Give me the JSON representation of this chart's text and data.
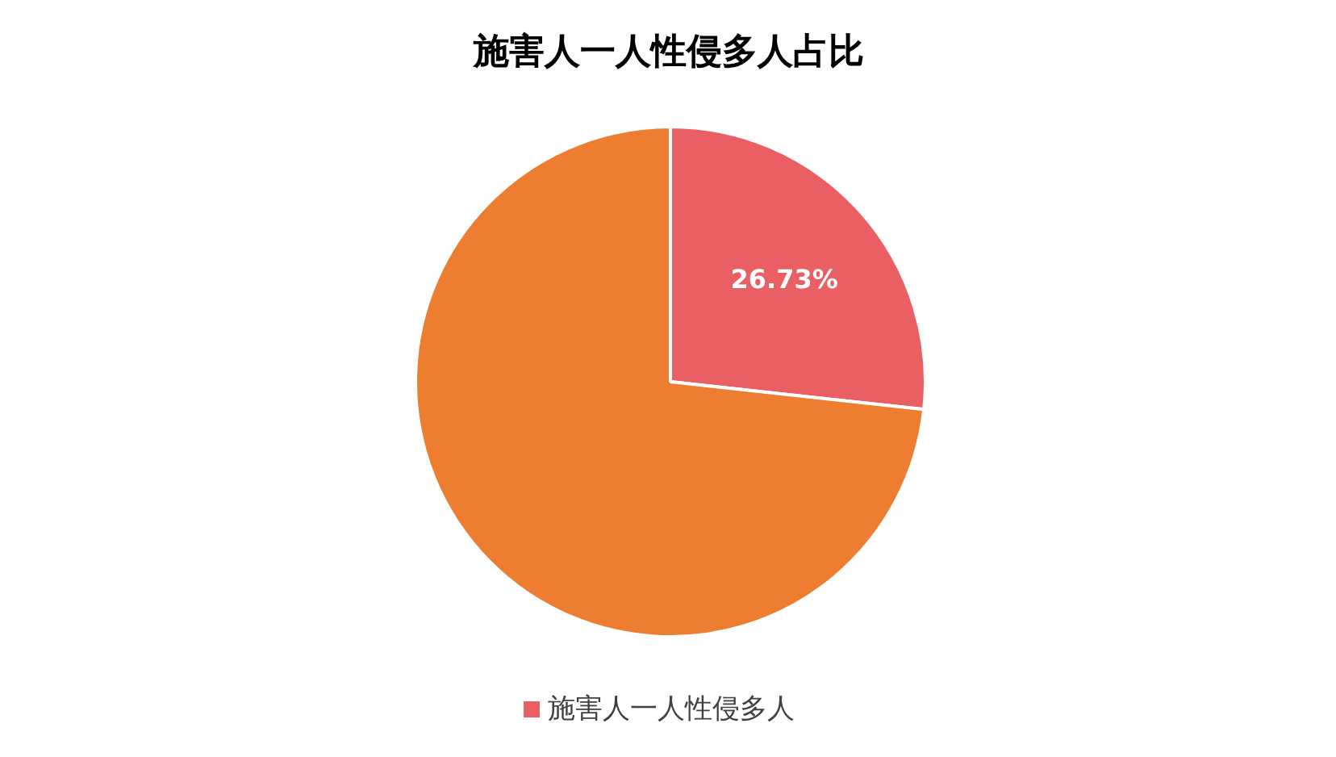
{
  "chart_data": {
    "type": "pie",
    "title": "施害人一人性侵多人占比",
    "categories": [
      "施害人一人性侵多人",
      null
    ],
    "values": [
      26.73,
      73.27
    ],
    "colors": [
      "#e95f63",
      "#ed7d31"
    ],
    "value_labels": [
      "26.73%",
      null
    ],
    "legend": "bottom"
  }
}
